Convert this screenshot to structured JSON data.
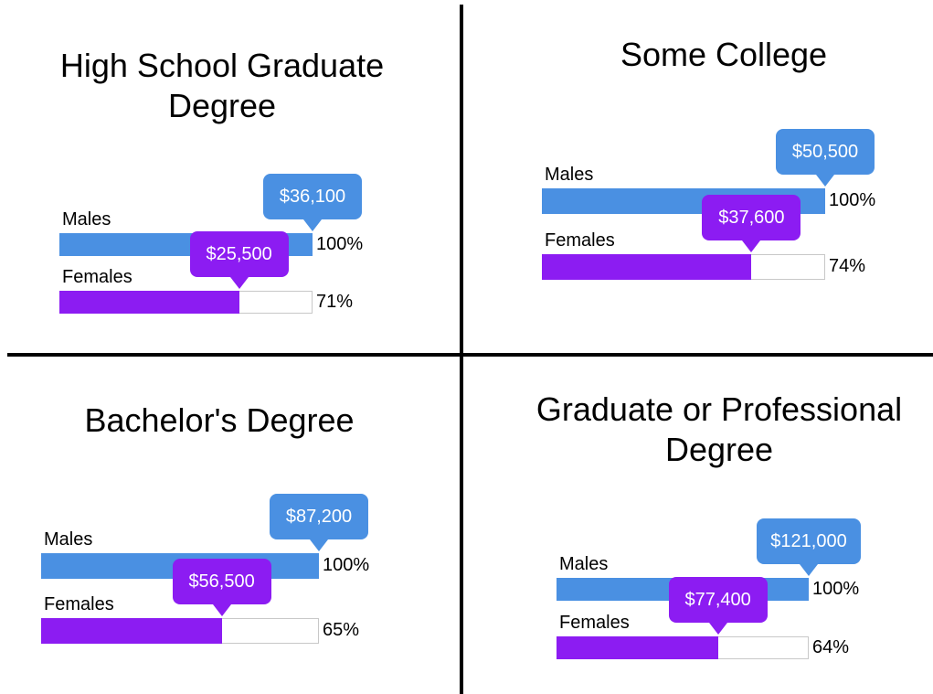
{
  "chart_data": [
    {
      "type": "bar",
      "title": "High School Graduate Degree",
      "categories": [
        "Males",
        "Females"
      ],
      "values": [
        36100,
        25500
      ],
      "value_labels": [
        "$36,100",
        "$25,500"
      ],
      "shares": [
        100,
        71
      ],
      "share_labels": [
        "100%",
        "71%"
      ],
      "colors": [
        "#4a90e2",
        "#8c1cf2"
      ]
    },
    {
      "type": "bar",
      "title": "Some College",
      "categories": [
        "Males",
        "Females"
      ],
      "values": [
        50500,
        37600
      ],
      "value_labels": [
        "$50,500",
        "$37,600"
      ],
      "shares": [
        100,
        74
      ],
      "share_labels": [
        "100%",
        "74%"
      ],
      "colors": [
        "#4a90e2",
        "#8c1cf2"
      ]
    },
    {
      "type": "bar",
      "title": "Bachelor's Degree",
      "categories": [
        "Males",
        "Females"
      ],
      "values": [
        87200,
        56500
      ],
      "value_labels": [
        "$87,200",
        "$56,500"
      ],
      "shares": [
        100,
        65
      ],
      "share_labels": [
        "100%",
        "65%"
      ],
      "colors": [
        "#4a90e2",
        "#8c1cf2"
      ]
    },
    {
      "type": "bar",
      "title": "Graduate or Professional Degree",
      "categories": [
        "Males",
        "Females"
      ],
      "values": [
        121000,
        77400
      ],
      "value_labels": [
        "$121,000",
        "$77,400"
      ],
      "shares": [
        100,
        64
      ],
      "share_labels": [
        "100%",
        "64%"
      ],
      "colors": [
        "#4a90e2",
        "#8c1cf2"
      ]
    }
  ]
}
